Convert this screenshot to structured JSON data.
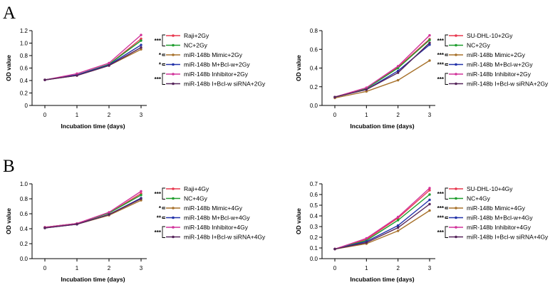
{
  "panel_letters": {
    "a": "A",
    "b": "B"
  },
  "chart_data": [
    {
      "id": "A-raji",
      "panel": "A",
      "type": "line",
      "xlabel": "Incubation time (days)",
      "ylabel": "OD value",
      "x": [
        0,
        1,
        2,
        3
      ],
      "xticks": [
        "0",
        "1",
        "2",
        "3"
      ],
      "ylim": [
        0,
        1.2
      ],
      "yticks": [
        "0",
        "0.2",
        "0.4",
        "0.6",
        "0.8",
        "1.0",
        "1.2"
      ],
      "legend_position": "right",
      "series": [
        {
          "name": "Raji+2Gy",
          "color": "#e8384f",
          "values": [
            0.41,
            0.49,
            0.66,
            1.07
          ]
        },
        {
          "name": "NC+2Gy",
          "color": "#1e9e2e",
          "values": [
            0.41,
            0.49,
            0.66,
            1.04
          ]
        },
        {
          "name": "miR-148b Mimic+2Gy",
          "color": "#a8722c",
          "values": [
            0.41,
            0.48,
            0.64,
            0.9
          ]
        },
        {
          "name": "miR-148b M+Bcl-w+2Gy",
          "color": "#2233aa",
          "values": [
            0.41,
            0.49,
            0.65,
            0.97
          ]
        },
        {
          "name": "miR-148b Inhibitor+2Gy",
          "color": "#d2329a",
          "values": [
            0.41,
            0.51,
            0.68,
            1.13
          ]
        },
        {
          "name": "miR-148b I+Bcl-w siRNA+2Gy",
          "color": "#55245a",
          "values": [
            0.41,
            0.48,
            0.64,
            0.93
          ]
        }
      ],
      "significance": [
        "***",
        "*",
        "*",
        "***"
      ]
    },
    {
      "id": "A-sudhl",
      "panel": "A",
      "type": "line",
      "xlabel": "Incubation time (days)",
      "ylabel": "OD value",
      "x": [
        0,
        1,
        2,
        3
      ],
      "xticks": [
        "0",
        "1",
        "2",
        "3"
      ],
      "ylim": [
        0,
        0.8
      ],
      "yticks": [
        "0.0",
        "0.2",
        "0.4",
        "0.6",
        "0.8"
      ],
      "legend_position": "right",
      "series": [
        {
          "name": "SU-DHL-10+2Gy",
          "color": "#e8384f",
          "values": [
            0.09,
            0.18,
            0.41,
            0.71
          ]
        },
        {
          "name": "NC+2Gy",
          "color": "#1e9e2e",
          "values": [
            0.09,
            0.18,
            0.4,
            0.7
          ]
        },
        {
          "name": "miR-148b Mimic+2Gy",
          "color": "#a8722c",
          "values": [
            0.08,
            0.15,
            0.27,
            0.48
          ]
        },
        {
          "name": "miR-148b M+Bcl-w+2Gy",
          "color": "#2233aa",
          "values": [
            0.09,
            0.17,
            0.37,
            0.65
          ]
        },
        {
          "name": "miR-148b Inhibitor+2Gy",
          "color": "#d2329a",
          "values": [
            0.09,
            0.19,
            0.42,
            0.75
          ]
        },
        {
          "name": "miR-148b I+Bcl-w siRNA+2Gy",
          "color": "#55245a",
          "values": [
            0.09,
            0.17,
            0.35,
            0.67
          ]
        }
      ],
      "significance": [
        "***",
        "***",
        "***",
        "***"
      ]
    },
    {
      "id": "B-raji",
      "panel": "B",
      "type": "line",
      "xlabel": "Incubation time (days)",
      "ylabel": "OD value",
      "x": [
        0,
        1,
        2,
        3
      ],
      "xticks": [
        "0",
        "1",
        "2",
        "3"
      ],
      "ylim": [
        0,
        1.0
      ],
      "yticks": [
        "0.0",
        "0.2",
        "0.4",
        "0.6",
        "0.8",
        "1.0"
      ],
      "legend_position": "right",
      "series": [
        {
          "name": "Raji+4Gy",
          "color": "#e8384f",
          "values": [
            0.42,
            0.47,
            0.61,
            0.87
          ]
        },
        {
          "name": "NC+4Gy",
          "color": "#1e9e2e",
          "values": [
            0.42,
            0.47,
            0.61,
            0.85
          ]
        },
        {
          "name": "miR-148b Mimic+4Gy",
          "color": "#a8722c",
          "values": [
            0.41,
            0.46,
            0.58,
            0.78
          ]
        },
        {
          "name": "miR-148b M+Bcl-w+4Gy",
          "color": "#2233aa",
          "values": [
            0.41,
            0.46,
            0.59,
            0.81
          ]
        },
        {
          "name": "miR-148b Inhibitor+4Gy",
          "color": "#d2329a",
          "values": [
            0.42,
            0.47,
            0.62,
            0.9
          ]
        },
        {
          "name": "miR-148b I+Bcl-w siRNA+4Gy",
          "color": "#55245a",
          "values": [
            0.41,
            0.46,
            0.59,
            0.8
          ]
        }
      ],
      "significance": [
        "***",
        "*",
        "**",
        "***"
      ]
    },
    {
      "id": "B-sudhl",
      "panel": "B",
      "type": "line",
      "xlabel": "Incubation time (days)",
      "ylabel": "OD value",
      "x": [
        0,
        1,
        2,
        3
      ],
      "xticks": [
        "0",
        "1",
        "2",
        "3"
      ],
      "ylim": [
        0,
        0.7
      ],
      "yticks": [
        "0.0",
        "0.1",
        "0.2",
        "0.3",
        "0.4",
        "0.5",
        "0.6",
        "0.7"
      ],
      "legend_position": "right",
      "series": [
        {
          "name": "SU-DHL-10+4Gy",
          "color": "#e8384f",
          "values": [
            0.09,
            0.18,
            0.38,
            0.64
          ]
        },
        {
          "name": "NC+4Gy",
          "color": "#1e9e2e",
          "values": [
            0.09,
            0.17,
            0.36,
            0.6
          ]
        },
        {
          "name": "miR-148b Mimic+4Gy",
          "color": "#a8722c",
          "values": [
            0.09,
            0.14,
            0.26,
            0.45
          ]
        },
        {
          "name": "miR-148b M+Bcl-w+4Gy",
          "color": "#2233aa",
          "values": [
            0.09,
            0.16,
            0.31,
            0.55
          ]
        },
        {
          "name": "miR-148b Inhibitor+4Gy",
          "color": "#d2329a",
          "values": [
            0.09,
            0.19,
            0.39,
            0.66
          ]
        },
        {
          "name": "miR-148b I+Bcl-w siRNA+4Gy",
          "color": "#55245a",
          "values": [
            0.09,
            0.15,
            0.29,
            0.51
          ]
        }
      ],
      "significance": [
        "***",
        "***",
        "***",
        "***"
      ]
    }
  ]
}
